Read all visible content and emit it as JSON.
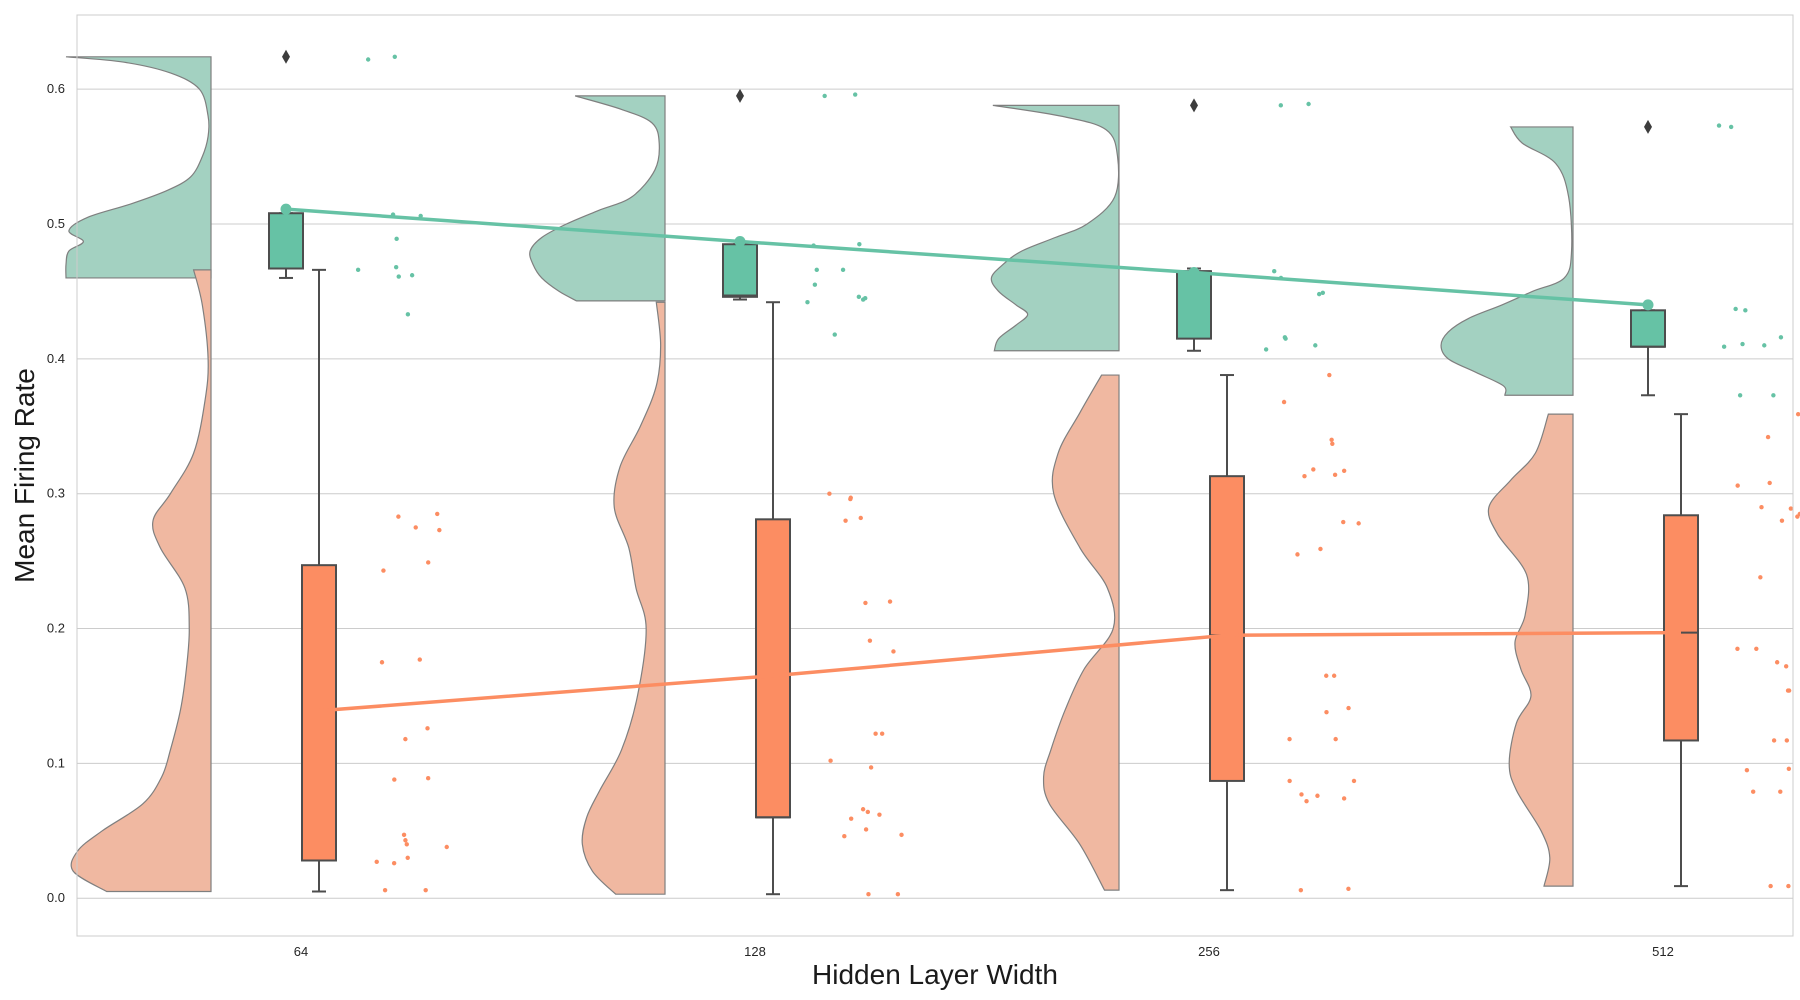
{
  "chart_data": {
    "type": "raincloud",
    "title": "",
    "xlabel": "Hidden Layer Width",
    "ylabel": "Mean Firing Rate",
    "categories": [
      "64",
      "128",
      "256",
      "512"
    ],
    "ylim": [
      -0.028,
      0.655
    ],
    "yticks": [
      0.0,
      0.1,
      0.2,
      0.3,
      0.4,
      0.5,
      0.6
    ],
    "ytick_labels": [
      "0.0",
      "0.1",
      "0.2",
      "0.3",
      "0.4",
      "0.5",
      "0.6"
    ],
    "grid": true,
    "legend": "none",
    "colors": {
      "green": "#66c2a5",
      "green_fill": "#a3d1c1",
      "orange": "#fc8d62",
      "orange_fill": "#f0b8a1",
      "outline": "#7f7f7f",
      "box_edge": "#4d4d4d",
      "grid": "#cccccc"
    },
    "series": [
      {
        "color_key": "green",
        "means": [
          0.511,
          0.487,
          0.464,
          0.44
        ],
        "groups": [
          {
            "box": {
              "whislo": 0.46,
              "q1": 0.467,
              "median": 0.467,
              "q3": 0.508,
              "whishi": 0.508
            },
            "fliers": [
              0.624
            ],
            "density": [
              [
                0.46,
                1.0
              ],
              [
                0.47,
                1.0
              ],
              [
                0.48,
                0.98
              ],
              [
                0.487,
                0.88
              ],
              [
                0.495,
                0.98
              ],
              [
                0.505,
                0.85
              ],
              [
                0.515,
                0.55
              ],
              [
                0.525,
                0.3
              ],
              [
                0.535,
                0.14
              ],
              [
                0.55,
                0.06
              ],
              [
                0.565,
                0.02
              ],
              [
                0.58,
                0.02
              ],
              [
                0.6,
                0.08
              ],
              [
                0.612,
                0.28
              ],
              [
                0.62,
                0.6
              ],
              [
                0.624,
                1.0
              ]
            ],
            "points": [
              0.624,
              0.622,
              0.507,
              0.506,
              0.489,
              0.468,
              0.466,
              0.462,
              0.461,
              0.433
            ]
          },
          {
            "box": {
              "whislo": 0.444,
              "q1": 0.446,
              "median": 0.447,
              "q3": 0.485,
              "whishi": 0.485
            },
            "fliers": [
              0.595
            ],
            "density": [
              [
                0.443,
                0.61
              ],
              [
                0.45,
                0.73
              ],
              [
                0.46,
                0.85
              ],
              [
                0.47,
                0.91
              ],
              [
                0.48,
                0.93
              ],
              [
                0.49,
                0.85
              ],
              [
                0.5,
                0.68
              ],
              [
                0.51,
                0.46
              ],
              [
                0.52,
                0.23
              ],
              [
                0.54,
                0.07
              ],
              [
                0.56,
                0.04
              ],
              [
                0.575,
                0.09
              ],
              [
                0.585,
                0.3
              ],
              [
                0.595,
                0.62
              ]
            ],
            "points": [
              0.596,
              0.595,
              0.485,
              0.484,
              0.466,
              0.466,
              0.455,
              0.446,
              0.445,
              0.444,
              0.442,
              0.418
            ]
          },
          {
            "box": {
              "whislo": 0.406,
              "q1": 0.415,
              "median": 0.465,
              "q3": 0.465,
              "whishi": 0.467
            },
            "fliers": [
              0.588
            ],
            "density": [
              [
                0.406,
                0.86
              ],
              [
                0.415,
                0.83
              ],
              [
                0.425,
                0.71
              ],
              [
                0.433,
                0.63
              ],
              [
                0.44,
                0.71
              ],
              [
                0.45,
                0.83
              ],
              [
                0.46,
                0.88
              ],
              [
                0.47,
                0.8
              ],
              [
                0.48,
                0.67
              ],
              [
                0.49,
                0.44
              ],
              [
                0.5,
                0.22
              ],
              [
                0.52,
                0.03
              ],
              [
                0.55,
                0.01
              ],
              [
                0.57,
                0.09
              ],
              [
                0.58,
                0.4
              ],
              [
                0.588,
                0.87
              ]
            ],
            "points": [
              0.589,
              0.588,
              0.465,
              0.46,
              0.449,
              0.448,
              0.416,
              0.415,
              0.41,
              0.407
            ]
          },
          {
            "box": {
              "whislo": 0.373,
              "q1": 0.409,
              "median": 0.409,
              "q3": 0.436,
              "whishi": 0.436
            },
            "fliers": [
              0.572
            ],
            "density": [
              [
                0.373,
                0.47
              ],
              [
                0.38,
                0.48
              ],
              [
                0.39,
                0.67
              ],
              [
                0.4,
                0.86
              ],
              [
                0.41,
                0.91
              ],
              [
                0.42,
                0.86
              ],
              [
                0.43,
                0.72
              ],
              [
                0.44,
                0.49
              ],
              [
                0.45,
                0.28
              ],
              [
                0.46,
                0.06
              ],
              [
                0.48,
                0.01
              ],
              [
                0.52,
                0.03
              ],
              [
                0.545,
                0.12
              ],
              [
                0.56,
                0.35
              ],
              [
                0.572,
                0.43
              ]
            ],
            "points": [
              0.573,
              0.572,
              0.437,
              0.436,
              0.416,
              0.411,
              0.41,
              0.409,
              0.373,
              0.373
            ]
          }
        ]
      },
      {
        "color_key": "orange",
        "means": [
          0.139,
          0.165,
          0.195,
          0.197
        ],
        "groups": [
          {
            "box": {
              "whislo": 0.005,
              "q1": 0.028,
              "median": 0.028,
              "q3": 0.247,
              "whishi": 0.466
            },
            "fliers": [],
            "density": [
              [
                0.005,
                0.72
              ],
              [
                0.02,
                0.95
              ],
              [
                0.035,
                0.92
              ],
              [
                0.05,
                0.75
              ],
              [
                0.07,
                0.47
              ],
              [
                0.09,
                0.34
              ],
              [
                0.11,
                0.28
              ],
              [
                0.14,
                0.21
              ],
              [
                0.17,
                0.17
              ],
              [
                0.2,
                0.15
              ],
              [
                0.23,
                0.18
              ],
              [
                0.26,
                0.35
              ],
              [
                0.28,
                0.4
              ],
              [
                0.3,
                0.28
              ],
              [
                0.33,
                0.12
              ],
              [
                0.37,
                0.04
              ],
              [
                0.4,
                0.02
              ],
              [
                0.44,
                0.06
              ],
              [
                0.466,
                0.12
              ]
            ],
            "points": [
              0.285,
              0.283,
              0.275,
              0.273,
              0.249,
              0.243,
              0.177,
              0.175,
              0.126,
              0.118,
              0.089,
              0.088,
              0.047,
              0.043,
              0.04,
              0.038,
              0.03,
              0.027,
              0.026,
              0.006,
              0.006
            ]
          },
          {
            "box": {
              "whislo": 0.003,
              "q1": 0.06,
              "median": 0.06,
              "q3": 0.281,
              "whishi": 0.442
            },
            "fliers": [],
            "density": [
              [
                0.003,
                0.34
              ],
              [
                0.02,
                0.5
              ],
              [
                0.04,
                0.57
              ],
              [
                0.06,
                0.54
              ],
              [
                0.08,
                0.45
              ],
              [
                0.11,
                0.3
              ],
              [
                0.15,
                0.19
              ],
              [
                0.2,
                0.13
              ],
              [
                0.23,
                0.2
              ],
              [
                0.26,
                0.25
              ],
              [
                0.29,
                0.35
              ],
              [
                0.32,
                0.31
              ],
              [
                0.35,
                0.17
              ],
              [
                0.38,
                0.06
              ],
              [
                0.41,
                0.03
              ],
              [
                0.442,
                0.06
              ]
            ],
            "points": [
              0.3,
              0.297,
              0.296,
              0.282,
              0.28,
              0.22,
              0.219,
              0.191,
              0.183,
              0.122,
              0.122,
              0.102,
              0.097,
              0.066,
              0.064,
              0.062,
              0.059,
              0.051,
              0.047,
              0.046,
              0.003,
              0.003
            ]
          },
          {
            "box": {
              "whislo": 0.006,
              "q1": 0.087,
              "median": 0.195,
              "q3": 0.313,
              "whishi": 0.388
            },
            "fliers": [],
            "density": [
              [
                0.006,
                0.1
              ],
              [
                0.04,
                0.27
              ],
              [
                0.07,
                0.48
              ],
              [
                0.09,
                0.52
              ],
              [
                0.11,
                0.47
              ],
              [
                0.14,
                0.37
              ],
              [
                0.17,
                0.24
              ],
              [
                0.2,
                0.04
              ],
              [
                0.23,
                0.08
              ],
              [
                0.26,
                0.27
              ],
              [
                0.3,
                0.45
              ],
              [
                0.33,
                0.42
              ],
              [
                0.36,
                0.27
              ],
              [
                0.388,
                0.12
              ]
            ],
            "points": [
              0.388,
              0.368,
              0.34,
              0.337,
              0.318,
              0.317,
              0.314,
              0.313,
              0.279,
              0.278,
              0.259,
              0.255,
              0.165,
              0.165,
              0.141,
              0.138,
              0.118,
              0.118,
              0.087,
              0.087,
              0.077,
              0.076,
              0.074,
              0.072,
              0.007,
              0.006
            ]
          },
          {
            "box": {
              "whislo": 0.009,
              "q1": 0.117,
              "median": 0.197,
              "q3": 0.284,
              "whishi": 0.359
            },
            "fliers": [],
            "density": [
              [
                0.009,
                0.2
              ],
              [
                0.03,
                0.16
              ],
              [
                0.05,
                0.22
              ],
              [
                0.08,
                0.39
              ],
              [
                0.1,
                0.44
              ],
              [
                0.13,
                0.39
              ],
              [
                0.15,
                0.29
              ],
              [
                0.17,
                0.36
              ],
              [
                0.19,
                0.4
              ],
              [
                0.21,
                0.33
              ],
              [
                0.24,
                0.32
              ],
              [
                0.27,
                0.52
              ],
              [
                0.29,
                0.58
              ],
              [
                0.31,
                0.43
              ],
              [
                0.33,
                0.26
              ],
              [
                0.359,
                0.17
              ]
            ],
            "points": [
              0.359,
              0.342,
              0.308,
              0.306,
              0.29,
              0.289,
              0.285,
              0.283,
              0.281,
              0.28,
              0.238,
              0.238,
              0.185,
              0.185,
              0.175,
              0.172,
              0.154,
              0.154,
              0.117,
              0.117,
              0.117,
              0.096,
              0.095,
              0.079,
              0.079,
              0.009,
              0.009
            ]
          }
        ]
      }
    ]
  }
}
